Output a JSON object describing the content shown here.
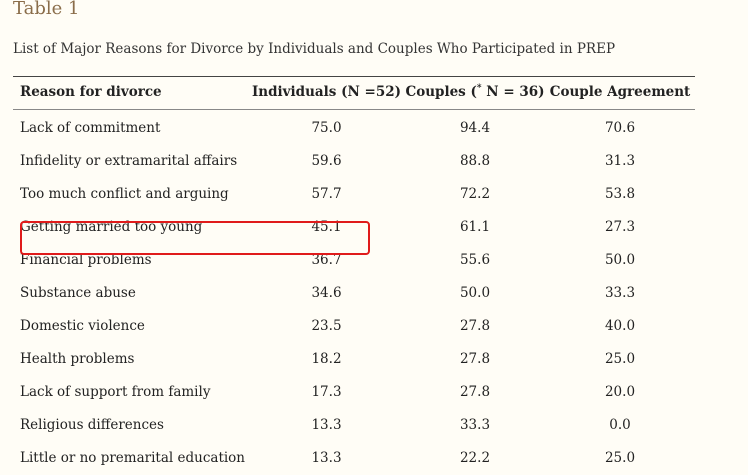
{
  "title": "Table 1",
  "caption": "List of Major Reasons for Divorce by Individuals and Couples Who Participated in PREP",
  "columns": {
    "reason": "Reason for divorce",
    "individuals": "Individuals (N =52)",
    "couples_pre": "Couples (",
    "couples_sup": "*",
    "couples_post": " N = 36)",
    "agreement": "Couple Agreement"
  },
  "rows": [
    {
      "reason": "Lack of commitment",
      "individuals": "75.0",
      "couples": "94.4",
      "agreement": "70.6"
    },
    {
      "reason": "Infidelity or extramarital affairs",
      "individuals": "59.6",
      "couples": "88.8",
      "agreement": "31.3"
    },
    {
      "reason": "Too much conflict and arguing",
      "individuals": "57.7",
      "couples": "72.2",
      "agreement": "53.8"
    },
    {
      "reason": "Getting married too young",
      "individuals": "45.1",
      "couples": "61.1",
      "agreement": "27.3"
    },
    {
      "reason": "Financial problems",
      "individuals": "36.7",
      "couples": "55.6",
      "agreement": "50.0"
    },
    {
      "reason": "Substance abuse",
      "individuals": "34.6",
      "couples": "50.0",
      "agreement": "33.3"
    },
    {
      "reason": "Domestic violence",
      "individuals": "23.5",
      "couples": "27.8",
      "agreement": "40.0"
    },
    {
      "reason": "Health problems",
      "individuals": "18.2",
      "couples": "27.8",
      "agreement": "25.0"
    },
    {
      "reason": "Lack of support from family",
      "individuals": "17.3",
      "couples": "27.8",
      "agreement": "20.0"
    },
    {
      "reason": "Religious differences",
      "individuals": "13.3",
      "couples": "33.3",
      "agreement": "0.0"
    },
    {
      "reason": "Little or no premarital education",
      "individuals": "13.3",
      "couples": "22.2",
      "agreement": "25.0"
    }
  ],
  "highlighted_row": 1,
  "highlight_color": "#e01b1b"
}
